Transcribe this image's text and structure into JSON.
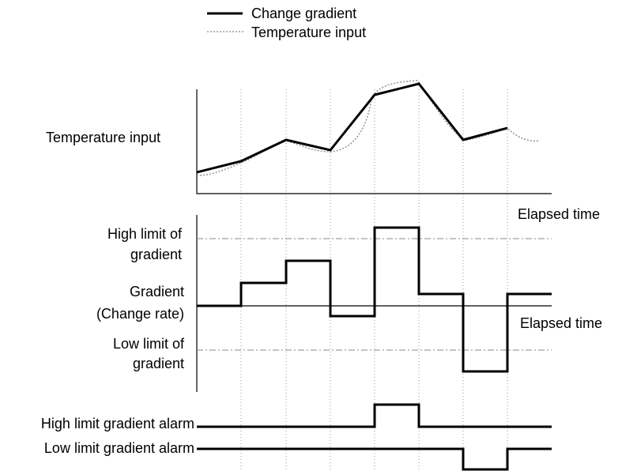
{
  "legend": {
    "items": [
      {
        "label": "Change gradient"
      },
      {
        "label": "Temperature input"
      }
    ]
  },
  "top_panel": {
    "y_label": "Temperature input",
    "x_label": "Elapsed time"
  },
  "middle_panel": {
    "high_limit_label": [
      "High limit of",
      "gradient"
    ],
    "y_label": [
      "Gradient",
      "(Change rate)"
    ],
    "low_limit_label": [
      "Low limit of",
      "gradient"
    ],
    "x_label": "Elapsed time"
  },
  "alarms": {
    "high_label": "High limit gradient alarm",
    "low_label": "Low limit gradient alarm"
  }
}
